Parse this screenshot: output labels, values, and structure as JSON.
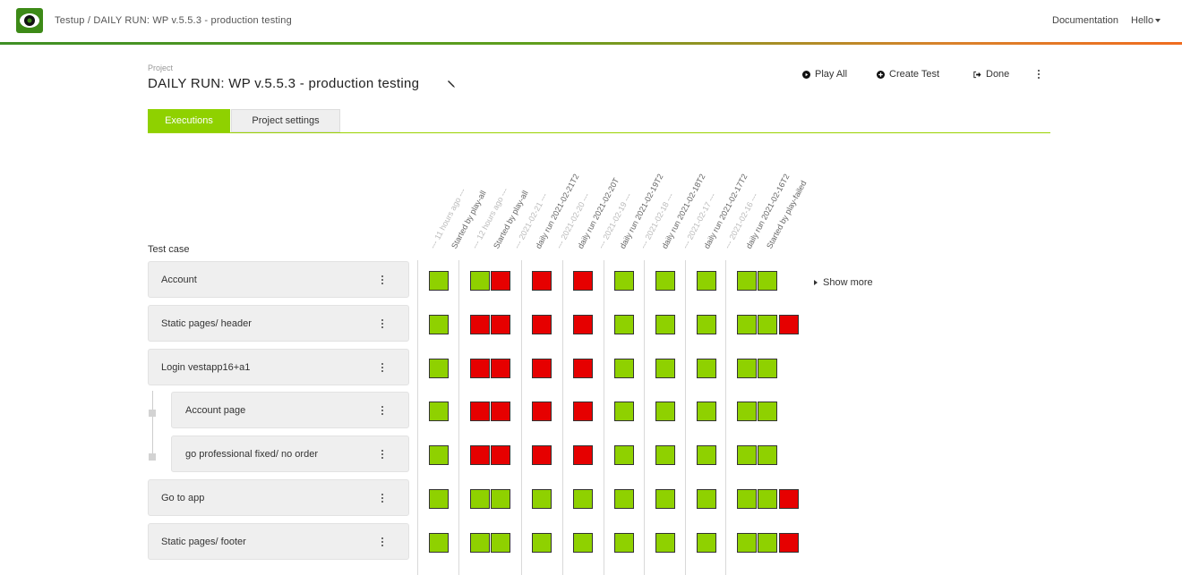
{
  "app": {
    "title": "Testup / DAILY RUN: WP v.5.5.3 - production testing",
    "documentation": "Documentation",
    "hello": "Hello"
  },
  "project": {
    "label": "Project",
    "name": "DAILY RUN: WP v.5.5.3 - production testing"
  },
  "actions": {
    "play_all": "Play All",
    "create_test": "Create Test",
    "done": "Done"
  },
  "tabs": {
    "executions": "Executions",
    "settings": "Project settings"
  },
  "test_case_header": "Test case",
  "columns": [
    {
      "date": "--- 11 hours ago ---",
      "title": "Started by play-all"
    },
    {
      "date": "--- 12 hours ago ---",
      "title": "Started by play-all"
    },
    {
      "date": "--- 2021-02-21 ---",
      "title": "daily run 2021-02-21T2"
    },
    {
      "date": "--- 2021-02-20 ---",
      "title": "daily run 2021-02-20T"
    },
    {
      "date": "--- 2021-02-19 ---",
      "title": "daily run 2021-02-19T2"
    },
    {
      "date": "--- 2021-02-18 ---",
      "title": "daily run 2021-02-18T2"
    },
    {
      "date": "--- 2021-02-17 ---",
      "title": "daily run 2021-02-17T2"
    },
    {
      "date": "--- 2021-02-16 ---",
      "title": "daily run 2021-02-16T2"
    },
    {
      "date": "",
      "title": "Started by play-failed"
    }
  ],
  "test_cases": [
    {
      "name": "Account",
      "indent": false,
      "results": [
        [
          "pass"
        ],
        [
          "pass",
          "fail"
        ],
        [
          "fail"
        ],
        [
          "fail"
        ],
        [
          "pass"
        ],
        [
          "pass"
        ],
        [
          "pass"
        ],
        [
          "pass",
          "pass"
        ]
      ]
    },
    {
      "name": "Static pages/ header",
      "indent": false,
      "results": [
        [
          "pass"
        ],
        [
          "fail",
          "fail"
        ],
        [
          "fail"
        ],
        [
          "fail"
        ],
        [
          "pass"
        ],
        [
          "pass"
        ],
        [
          "pass"
        ],
        [
          "pass",
          "pass",
          "fail"
        ]
      ]
    },
    {
      "name": "Login vestapp16+a1",
      "indent": false,
      "results": [
        [
          "pass"
        ],
        [
          "fail",
          "fail"
        ],
        [
          "fail"
        ],
        [
          "fail"
        ],
        [
          "pass"
        ],
        [
          "pass"
        ],
        [
          "pass"
        ],
        [
          "pass",
          "pass"
        ]
      ]
    },
    {
      "name": "Account page",
      "indent": true,
      "results": [
        [
          "pass"
        ],
        [
          "fail",
          "fail"
        ],
        [
          "fail"
        ],
        [
          "fail"
        ],
        [
          "pass"
        ],
        [
          "pass"
        ],
        [
          "pass"
        ],
        [
          "pass",
          "pass"
        ]
      ]
    },
    {
      "name": "go professional fixed/ no order",
      "indent": true,
      "results": [
        [
          "pass"
        ],
        [
          "fail",
          "fail"
        ],
        [
          "fail"
        ],
        [
          "fail"
        ],
        [
          "pass"
        ],
        [
          "pass"
        ],
        [
          "pass"
        ],
        [
          "pass",
          "pass"
        ]
      ]
    },
    {
      "name": "Go to app",
      "indent": false,
      "results": [
        [
          "pass"
        ],
        [
          "pass",
          "pass"
        ],
        [
          "pass"
        ],
        [
          "pass"
        ],
        [
          "pass"
        ],
        [
          "pass"
        ],
        [
          "pass"
        ],
        [
          "pass",
          "pass",
          "fail"
        ]
      ]
    },
    {
      "name": "Static pages/ footer",
      "indent": false,
      "results": [
        [
          "pass"
        ],
        [
          "pass",
          "pass"
        ],
        [
          "pass"
        ],
        [
          "pass"
        ],
        [
          "pass"
        ],
        [
          "pass"
        ],
        [
          "pass"
        ],
        [
          "pass",
          "pass",
          "fail"
        ]
      ]
    }
  ],
  "show_more": "Show more",
  "colors": {
    "accent": "#8fd100",
    "pass": "#8fd100",
    "fail": "#e60000"
  }
}
